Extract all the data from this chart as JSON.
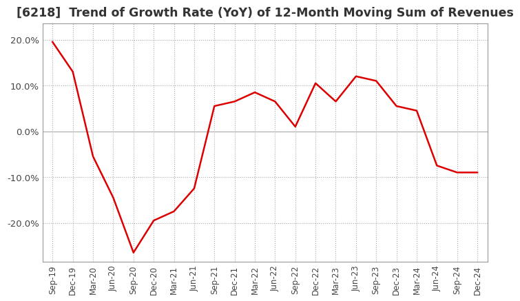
{
  "title": "[6218]  Trend of Growth Rate (YoY) of 12-Month Moving Sum of Revenues",
  "title_fontsize": 12.5,
  "line_color": "#dd0000",
  "background_color": "#ffffff",
  "grid_color": "#aaaaaa",
  "ylim": [
    -0.285,
    0.235
  ],
  "yticks": [
    -0.2,
    -0.1,
    0.0,
    0.1,
    0.2
  ],
  "ytick_labels": [
    "-20.0%",
    "-10.0%",
    "0.0%",
    "10.0%",
    "20.0%"
  ],
  "x_labels": [
    "Sep-19",
    "Dec-19",
    "Mar-20",
    "Jun-20",
    "Sep-20",
    "Dec-20",
    "Mar-21",
    "Jun-21",
    "Sep-21",
    "Dec-21",
    "Mar-22",
    "Jun-22",
    "Sep-22",
    "Dec-22",
    "Mar-23",
    "Jun-23",
    "Sep-23",
    "Dec-23",
    "Mar-24",
    "Jun-24",
    "Sep-24",
    "Dec-24"
  ],
  "values": [
    0.195,
    0.13,
    -0.055,
    -0.145,
    -0.265,
    -0.195,
    -0.175,
    -0.125,
    0.055,
    0.065,
    0.085,
    0.065,
    0.01,
    0.105,
    0.065,
    0.12,
    0.11,
    0.055,
    0.045,
    -0.075,
    -0.09,
    -0.09
  ]
}
